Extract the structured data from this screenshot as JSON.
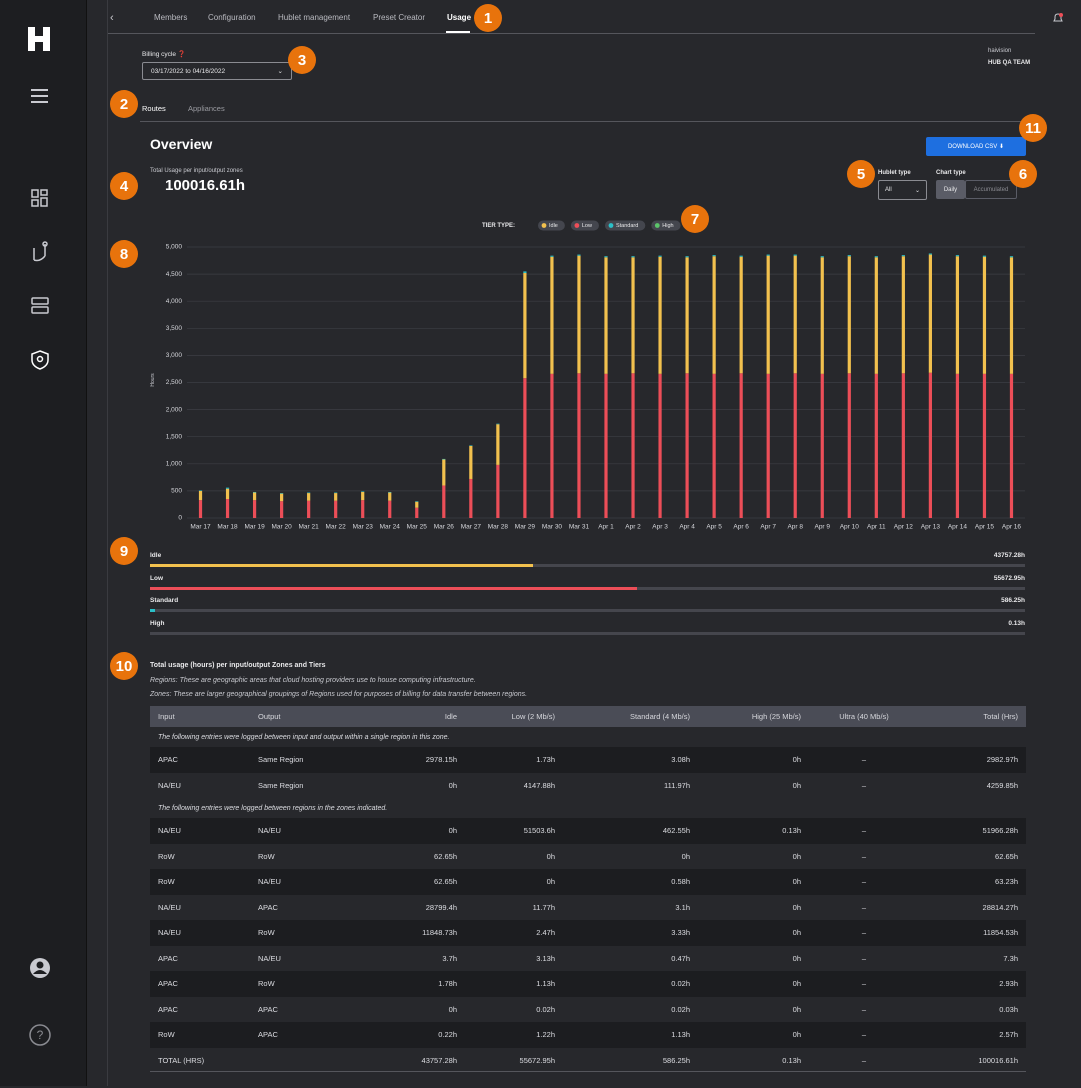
{
  "nav": {
    "tabs": [
      "Members",
      "Configuration",
      "Hublet management",
      "Preset Creator",
      "Usage"
    ]
  },
  "badges": [
    "1",
    "2",
    "3",
    "4",
    "5",
    "6",
    "7",
    "8",
    "9",
    "10",
    "11"
  ],
  "billing": {
    "label": "Billing cycle",
    "range": "03/17/2022 to 04/16/2022"
  },
  "account": {
    "org": "haivision",
    "team": "HUB QA TEAM"
  },
  "subtabs": [
    "Routes",
    "Appliances"
  ],
  "overview": {
    "title": "Overview",
    "download": "DOWNLOAD CSV",
    "total_label": "Total Usage per input/output zones",
    "total": "100016.61h",
    "hublet_type_label": "Hublet type",
    "hublet_type": "All",
    "chart_type_label": "Chart type",
    "chart_types": [
      "Daily",
      "Accumulated"
    ]
  },
  "chart_data": {
    "type": "bar",
    "stacked": true,
    "legend_title": "TIER TYPE:",
    "y_label": "Hours",
    "categories": [
      "Mar 17",
      "Mar 18",
      "Mar 19",
      "Mar 20",
      "Mar 21",
      "Mar 22",
      "Mar 23",
      "Mar 24",
      "Mar 25",
      "Mar 26",
      "Mar 27",
      "Mar 28",
      "Mar 29",
      "Mar 30",
      "Mar 31",
      "Apr 1",
      "Apr 2",
      "Apr 3",
      "Apr 4",
      "Apr 5",
      "Apr 6",
      "Apr 7",
      "Apr 8",
      "Apr 9",
      "Apr 10",
      "Apr 11",
      "Apr 12",
      "Apr 13",
      "Apr 14",
      "Apr 15",
      "Apr 16"
    ],
    "series": [
      {
        "name": "Idle",
        "color": "#f2c14e",
        "values": [
          170,
          190,
          140,
          140,
          140,
          140,
          150,
          150,
          110,
          480,
          610,
          750,
          1940,
          2160,
          2170,
          2150,
          2140,
          2160,
          2140,
          2170,
          2150,
          2180,
          2170,
          2150,
          2160,
          2150,
          2160,
          2180,
          2170,
          2160,
          2150
        ]
      },
      {
        "name": "Low",
        "color": "#ec4e58",
        "values": [
          330,
          350,
          330,
          310,
          320,
          320,
          330,
          320,
          190,
          600,
          720,
          980,
          2580,
          2660,
          2670,
          2660,
          2670,
          2660,
          2670,
          2660,
          2670,
          2660,
          2670,
          2660,
          2670,
          2660,
          2670,
          2680,
          2660,
          2660,
          2660
        ]
      },
      {
        "name": "Standard",
        "color": "#2bc0c8",
        "values": [
          10,
          20,
          10,
          10,
          10,
          10,
          10,
          10,
          10,
          10,
          10,
          10,
          30,
          20,
          20,
          20,
          20,
          20,
          20,
          20,
          20,
          20,
          20,
          20,
          20,
          20,
          20,
          20,
          20,
          20,
          20
        ]
      },
      {
        "name": "High",
        "color": "#5cc46a",
        "values": [
          0,
          0,
          0,
          0,
          0,
          0,
          0,
          0,
          0,
          0,
          0,
          0,
          0,
          0.13,
          0,
          0,
          0,
          0,
          0,
          0,
          0,
          0,
          0,
          0,
          0,
          0,
          0,
          0,
          0,
          0,
          0
        ]
      }
    ],
    "ylim": [
      0,
      5000
    ],
    "yticks": [
      0,
      500,
      {
        "value": 1000,
        "label": "1,000"
      },
      {
        "value": 1500,
        "label": "1,500"
      },
      {
        "value": 2000,
        "label": "2,000"
      },
      {
        "value": 2500,
        "label": "2,500"
      },
      {
        "value": 3000,
        "label": "3,000"
      },
      {
        "value": 3500,
        "label": "3,500"
      },
      {
        "value": 4000,
        "label": "4,000"
      },
      {
        "value": 4500,
        "label": "4,500"
      },
      {
        "value": 5000,
        "label": "5,000"
      }
    ],
    "grid": true
  },
  "tiers": [
    {
      "name": "Idle",
      "value": 43757.28,
      "value_label": "43757.28h",
      "color": "#f2c14e"
    },
    {
      "name": "Low",
      "value": 55672.95,
      "value_label": "55672.95h",
      "color": "#ec4e58"
    },
    {
      "name": "Standard",
      "value": 586.25,
      "value_label": "586.25h",
      "color": "#2bc0c8"
    },
    {
      "name": "High",
      "value": 0.13,
      "value_label": "0.13h",
      "color": "#5cc46a"
    }
  ],
  "table": {
    "title": "Total usage (hours) per input/output Zones and Tiers",
    "notes": [
      "Regions: These are geographic areas that cloud hosting providers use to house computing infrastructure.",
      "Zones: These are larger geographical groupings of Regions used for purposes of billing for data transfer between regions."
    ],
    "headers": [
      "Input",
      "Output",
      "Idle",
      "Low (2 Mb/s)",
      "Standard (4 Mb/s)",
      "High (25 Mb/s)",
      "Ultra (40 Mb/s)",
      "Total (Hrs)"
    ],
    "sections": [
      {
        "note": "The following entries were logged between input and output within a single region in this zone.",
        "rows": [
          [
            "APAC",
            "Same Region",
            "2978.15h",
            "1.73h",
            "3.08h",
            "0h",
            "–",
            "2982.97h"
          ],
          [
            "NA/EU",
            "Same Region",
            "0h",
            "4147.88h",
            "111.97h",
            "0h",
            "–",
            "4259.85h"
          ]
        ]
      },
      {
        "note": "The following entries were logged between regions in the zones indicated.",
        "rows": [
          [
            "NA/EU",
            "NA/EU",
            "0h",
            "51503.6h",
            "462.55h",
            "0.13h",
            "–",
            "51966.28h"
          ],
          [
            "RoW",
            "RoW",
            "62.65h",
            "0h",
            "0h",
            "0h",
            "–",
            "62.65h"
          ],
          [
            "RoW",
            "NA/EU",
            "62.65h",
            "0h",
            "0.58h",
            "0h",
            "–",
            "63.23h"
          ],
          [
            "NA/EU",
            "APAC",
            "28799.4h",
            "11.77h",
            "3.1h",
            "0h",
            "–",
            "28814.27h"
          ],
          [
            "NA/EU",
            "RoW",
            "11848.73h",
            "2.47h",
            "3.33h",
            "0h",
            "–",
            "11854.53h"
          ],
          [
            "APAC",
            "NA/EU",
            "3.7h",
            "3.13h",
            "0.47h",
            "0h",
            "–",
            "7.3h"
          ],
          [
            "APAC",
            "RoW",
            "1.78h",
            "1.13h",
            "0.02h",
            "0h",
            "–",
            "2.93h"
          ],
          [
            "APAC",
            "APAC",
            "0h",
            "0.02h",
            "0.02h",
            "0h",
            "–",
            "0.03h"
          ],
          [
            "RoW",
            "APAC",
            "0.22h",
            "1.22h",
            "1.13h",
            "0h",
            "–",
            "2.57h"
          ]
        ]
      }
    ],
    "total": {
      "label": "TOTAL (HRS)",
      "cells": [
        "43757.28h",
        "55672.95h",
        "586.25h",
        "0.13h",
        "–",
        "100016.61h"
      ]
    }
  }
}
